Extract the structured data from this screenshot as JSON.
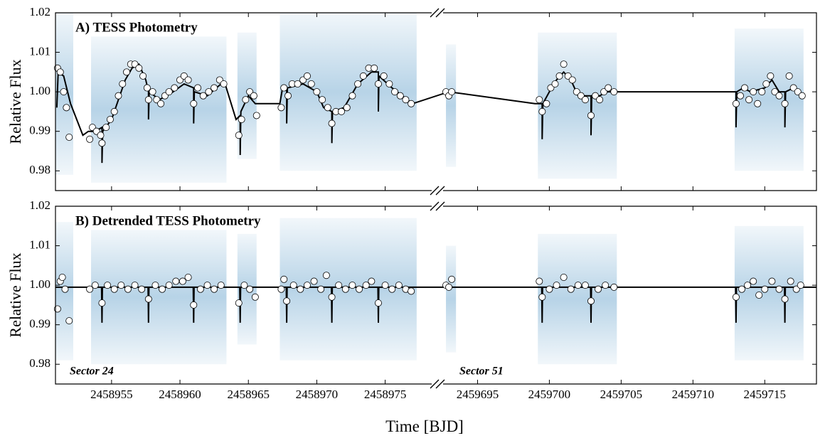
{
  "chart_data": [
    {
      "type": "scatter",
      "title": "A) TESS Photometry",
      "ylabel": "Relative Flux",
      "xlim": [
        2458950.9,
        2459718.6
      ],
      "x_break": [
        2458978.4,
        2459692.6
      ],
      "ylim": [
        0.975,
        1.02
      ],
      "yticks": [
        0.98,
        0.99,
        {
          "value": 1,
          "label": "1.00"
        },
        1.01,
        1.02
      ],
      "xticks": [
        2458955,
        2458960,
        2458965,
        2458970,
        2458975,
        2459695,
        2459700,
        2459705,
        2459710,
        2459715
      ],
      "show_xtick_labels": false,
      "scatter_color": "#1f77b4",
      "scatter_extent": [
        {
          "x": [
            2458950.9,
            2458952.2
          ],
          "y": [
            0.979,
            1.02
          ]
        },
        {
          "x": [
            2458953.5,
            2458963.4
          ],
          "y": [
            0.977,
            1.014
          ]
        },
        {
          "x": [
            2458964.2,
            2458965.6
          ],
          "y": [
            0.983,
            1.015
          ]
        },
        {
          "x": [
            2458967.3,
            2458977.3
          ],
          "y": [
            0.98,
            1.02
          ]
        },
        {
          "x": [
            2459692.8,
            2459693.5
          ],
          "y": [
            0.981,
            1.012
          ]
        },
        {
          "x": [
            2459699.2,
            2459704.7
          ],
          "y": [
            0.978,
            1.015
          ]
        },
        {
          "x": [
            2459712.9,
            2459717.7
          ],
          "y": [
            0.98,
            1.016
          ]
        }
      ],
      "series": [
        {
          "type": "line",
          "color": "#000000",
          "x": [
            2458951.0,
            2458951.1,
            2458951.5,
            2458952.0,
            2458952.9,
            2458953.3,
            2458953.8,
            2458954.3,
            2458954.3,
            2458954.35,
            2458955.0,
            2458955.5,
            2458956.0,
            2458956.5,
            2458957.0,
            2458957.5,
            2458957.7,
            2458957.7,
            2458957.75,
            2458958.5,
            2458959.5,
            2458960.3,
            2458961.0,
            2458961.0,
            2458961.05,
            2458962.0,
            2458963.0,
            2458963.3,
            2458964.1,
            2458964.4,
            2458964.4,
            2458964.45,
            2458965.0,
            2458965.5,
            2458967.3,
            2458967.5,
            2458967.8,
            2458967.8,
            2458967.85,
            2458969.0,
            2458970.0,
            2458970.5,
            2458971.1,
            2458971.1,
            2458971.15,
            2458972.0,
            2458973.0,
            2458974.0,
            2458974.5,
            2458974.5,
            2458974.55,
            2458975.5,
            2458977.0,
            2459693.0,
            2459699.0,
            2459699.5,
            2459699.5,
            2459699.55,
            2459700.0,
            2459700.5,
            2459701.0,
            2459701.5,
            2459702.0,
            2459702.9,
            2459702.9,
            2459702.95,
            2459703.5,
            2459704.0,
            2459704.7,
            2459713.0,
            2459713.0,
            2459713.05,
            2459713.5,
            2459714.0,
            2459715.0,
            2459715.5,
            2459716.0,
            2459716.4,
            2459716.4,
            2459716.45,
            2459717.0,
            2459717.5
          ],
          "values": [
            0.996,
            1.005,
            1.004,
            0.997,
            0.989,
            0.99,
            0.99,
            0.991,
            0.982,
            0.99,
            0.993,
            0.998,
            1.003,
            1.006,
            1.007,
            1.003,
            1.0,
            0.993,
            1.0,
            0.998,
            1.0,
            1.002,
            1.001,
            0.992,
            1.0,
            0.999,
            1.002,
            1.002,
            0.993,
            0.994,
            0.984,
            0.995,
            0.999,
            0.997,
            0.997,
            1.001,
            1.001,
            0.992,
            1.001,
            1.002,
            1.0,
            0.996,
            0.995,
            0.987,
            0.995,
            0.996,
            1.002,
            1.005,
            1.005,
            0.995,
            1.004,
            1.001,
            0.997,
            1.0,
            0.997,
            0.997,
            0.988,
            0.997,
            1.0,
            1.003,
            1.005,
            1.003,
            0.999,
            0.999,
            0.989,
            0.999,
            0.999,
            1.0,
            1.0,
            1.0,
            0.991,
            1.0,
            1.001,
            1.0,
            1.001,
            1.003,
            1.0,
            1.0,
            0.991,
            1.0,
            1.001,
            0.999
          ]
        },
        {
          "type": "binned",
          "color": "#ffffff",
          "x": [
            2458951.05,
            2458951.25,
            2458951.5,
            2458951.7,
            2458951.9,
            2458953.4,
            2458953.6,
            2458953.9,
            2458954.2,
            2458954.3,
            2458954.6,
            2458954.9,
            2458955.2,
            2458955.5,
            2458955.8,
            2458956.1,
            2458956.4,
            2458956.7,
            2458957.0,
            2458957.3,
            2458957.6,
            2458957.7,
            2458958.0,
            2458958.3,
            2458958.6,
            2458958.9,
            2458959.2,
            2458959.6,
            2458960.0,
            2458960.3,
            2458960.6,
            2458961.0,
            2458961.3,
            2458961.7,
            2458962.1,
            2458962.5,
            2458962.9,
            2458963.2,
            2458964.3,
            2458964.5,
            2458964.8,
            2458965.1,
            2458965.4,
            2458965.6,
            2458967.4,
            2458967.6,
            2458967.9,
            2458968.2,
            2458968.6,
            2458969.0,
            2458969.3,
            2458969.6,
            2458970.0,
            2458970.4,
            2458970.8,
            2458971.1,
            2458971.4,
            2458971.8,
            2458972.2,
            2458972.6,
            2458973.0,
            2458973.4,
            2458973.8,
            2458974.2,
            2458974.5,
            2458974.9,
            2458975.3,
            2458975.7,
            2458976.1,
            2458976.5,
            2458976.9,
            2459692.8,
            2459693.0,
            2459693.2,
            2459699.3,
            2459699.5,
            2459699.8,
            2459700.1,
            2459700.4,
            2459700.7,
            2459701.0,
            2459701.3,
            2459701.6,
            2459701.9,
            2459702.2,
            2459702.5,
            2459702.9,
            2459703.2,
            2459703.5,
            2459703.8,
            2459704.1,
            2459704.5,
            2459713.0,
            2459713.3,
            2459713.6,
            2459713.9,
            2459714.2,
            2459714.5,
            2459714.8,
            2459715.1,
            2459715.4,
            2459715.7,
            2459716.0,
            2459716.4,
            2459716.7,
            2459717.0,
            2459717.3,
            2459717.6
          ],
          "values": [
            1.006,
            1.005,
            1.0,
            0.996,
            0.9885,
            0.988,
            0.991,
            0.99,
            0.989,
            0.987,
            0.991,
            0.993,
            0.995,
            0.999,
            1.002,
            1.005,
            1.007,
            1.007,
            1.006,
            1.004,
            1.001,
            0.998,
            1.0,
            0.998,
            0.997,
            0.999,
            1.0,
            1.001,
            1.003,
            1.004,
            1.003,
            0.997,
            1.001,
            0.999,
            1.0,
            1.001,
            1.003,
            1.002,
            0.989,
            0.993,
            0.998,
            1.0,
            0.999,
            0.994,
            0.996,
            1.001,
            0.999,
            1.002,
            1.002,
            1.003,
            1.004,
            1.002,
            1.0,
            0.998,
            0.996,
            0.992,
            0.995,
            0.995,
            0.996,
            0.999,
            1.002,
            1.004,
            1.006,
            1.006,
            1.002,
            1.004,
            1.002,
            1.0,
            0.999,
            0.998,
            0.997,
            1.0,
            0.999,
            1.0,
            0.998,
            0.995,
            0.997,
            1.001,
            1.002,
            1.004,
            1.007,
            1.004,
            1.003,
            1.0,
            0.999,
            0.998,
            0.994,
            0.999,
            0.998,
            1.0,
            1.001,
            1.0,
            0.997,
            0.999,
            1.001,
            0.998,
            1.0,
            0.997,
            1.0,
            1.002,
            1.004,
            1.0,
            0.999,
            0.997,
            1.004,
            1.001,
            1.0,
            0.999
          ]
        }
      ]
    },
    {
      "type": "scatter",
      "title": "B) Detrended TESS Photometry",
      "ylabel": "Relative Flux",
      "xlabel": "Time [BJD]",
      "annotations": [
        "Sector 24",
        "Sector 51"
      ],
      "xlim": [
        2458950.9,
        2459718.6
      ],
      "x_break": [
        2458978.4,
        2459692.6
      ],
      "ylim": [
        0.975,
        1.02
      ],
      "yticks": [
        0.98,
        0.99,
        {
          "value": 1,
          "label": "1.00"
        },
        1.01,
        1.02
      ],
      "xticks": [
        2458955,
        2458960,
        2458965,
        2458970,
        2458975,
        2459695,
        2459700,
        2459705,
        2459710,
        2459715
      ],
      "show_xtick_labels": true,
      "scatter_color": "#1f77b4",
      "scatter_extent": [
        {
          "x": [
            2458950.9,
            2458952.2
          ],
          "y": [
            0.981,
            1.016
          ]
        },
        {
          "x": [
            2458953.5,
            2458963.4
          ],
          "y": [
            0.98,
            1.014
          ]
        },
        {
          "x": [
            2458964.2,
            2458965.6
          ],
          "y": [
            0.985,
            1.013
          ]
        },
        {
          "x": [
            2458967.3,
            2458977.3
          ],
          "y": [
            0.981,
            1.017
          ]
        },
        {
          "x": [
            2459692.8,
            2459693.5
          ],
          "y": [
            0.983,
            1.01
          ]
        },
        {
          "x": [
            2459699.2,
            2459704.7
          ],
          "y": [
            0.98,
            1.013
          ]
        },
        {
          "x": [
            2459712.9,
            2459717.7
          ],
          "y": [
            0.981,
            1.015
          ]
        }
      ],
      "series": [
        {
          "type": "line",
          "color": "#000000",
          "x": [
            2458950.9,
            2458954.27,
            2458954.3,
            2458954.33,
            2458957.67,
            2458957.7,
            2458957.73,
            2458960.97,
            2458961.0,
            2458961.03,
            2458964.37,
            2458964.4,
            2458964.43,
            2458967.77,
            2458967.8,
            2458967.83,
            2458971.07,
            2458971.1,
            2458971.13,
            2458974.47,
            2458974.5,
            2458974.53,
            2458978.4,
            2459692.6,
            2459699.47,
            2459699.5,
            2459699.53,
            2459702.87,
            2459702.9,
            2459702.93,
            2459712.97,
            2459713.0,
            2459713.03,
            2459716.37,
            2459716.4,
            2459716.43,
            2459718.6
          ],
          "values": [
            0.9995,
            0.9995,
            0.9905,
            0.9995,
            0.9995,
            0.9905,
            0.9995,
            0.9995,
            0.9905,
            0.9995,
            0.9995,
            0.9905,
            0.9995,
            0.9995,
            0.9905,
            0.9995,
            0.9995,
            0.9905,
            0.9995,
            0.9995,
            0.9905,
            0.9995,
            0.9995,
            0.9995,
            0.9995,
            0.9905,
            0.9995,
            0.9995,
            0.9905,
            0.9995,
            0.9995,
            0.9905,
            0.9995,
            0.9995,
            0.9905,
            0.9995,
            0.9995
          ]
        },
        {
          "type": "binned",
          "color": "#ffffff",
          "x": [
            2458951.05,
            2458951.25,
            2458951.4,
            2458951.6,
            2458951.9,
            2458953.4,
            2458953.8,
            2458954.3,
            2458954.7,
            2458955.2,
            2458955.7,
            2458956.2,
            2458956.7,
            2458957.2,
            2458957.7,
            2458958.2,
            2458958.7,
            2458959.2,
            2458959.7,
            2458960.2,
            2458960.6,
            2458961.0,
            2458961.5,
            2458962.0,
            2458962.5,
            2458963.0,
            2458964.3,
            2458964.7,
            2458965.1,
            2458965.5,
            2458967.4,
            2458967.6,
            2458967.8,
            2458968.3,
            2458968.8,
            2458969.3,
            2458969.8,
            2458970.3,
            2458970.7,
            2458971.1,
            2458971.6,
            2458972.1,
            2458972.6,
            2458973.1,
            2458973.6,
            2458974.0,
            2458974.5,
            2458975.0,
            2458975.5,
            2458976.0,
            2458976.5,
            2458976.9,
            2459692.8,
            2459693.0,
            2459693.2,
            2459699.3,
            2459699.5,
            2459700.0,
            2459700.5,
            2459701.0,
            2459701.5,
            2459702.0,
            2459702.5,
            2459702.9,
            2459703.4,
            2459703.9,
            2459704.5,
            2459713.0,
            2459713.4,
            2459713.8,
            2459714.2,
            2459714.6,
            2459715.0,
            2459715.5,
            2459716.0,
            2459716.4,
            2459716.8,
            2459717.2,
            2459717.5
          ],
          "values": [
            0.994,
            1.001,
            1.002,
            0.999,
            0.991,
            0.999,
            1.0,
            0.9955,
            1.0,
            0.999,
            1.0,
            0.999,
            1.0,
            0.999,
            0.9965,
            1.0,
            0.999,
            1.0,
            1.001,
            1.001,
            1.002,
            0.995,
            0.999,
            1.0,
            0.999,
            1.0,
            0.9955,
            1.0,
            0.999,
            0.997,
            0.999,
            1.0015,
            0.996,
            1.0,
            0.999,
            1.0,
            1.001,
            0.999,
            1.0025,
            0.997,
            1.0,
            0.999,
            1.0,
            0.999,
            1.0,
            1.001,
            0.9955,
            1.0,
            0.999,
            1.0,
            0.999,
            0.9985,
            1.0,
            0.9995,
            1.0015,
            1.001,
            0.997,
            0.999,
            1.0,
            1.002,
            0.999,
            1.0,
            1.0,
            0.996,
            0.999,
            1.0,
            0.9995,
            0.997,
            0.999,
            1.0,
            1.001,
            0.9975,
            0.999,
            1.001,
            0.999,
            0.9965,
            1.001,
            0.999,
            1.0
          ]
        }
      ]
    }
  ]
}
